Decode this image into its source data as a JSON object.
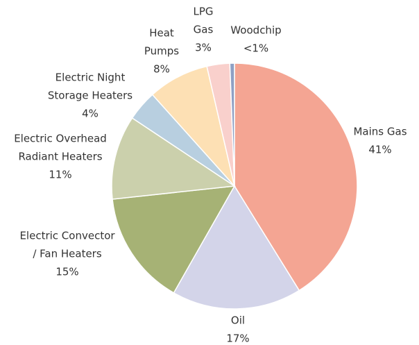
{
  "chart_data": {
    "type": "pie",
    "categories": [
      [
        "Mains Gas"
      ],
      [
        "Oil"
      ],
      [
        "Electric Convector",
        "/ Fan Heaters"
      ],
      [
        "Electric Overhead",
        "Radiant Heaters"
      ],
      [
        "Electric Night",
        "Storage Heaters"
      ],
      [
        "Heat",
        "Pumps"
      ],
      [
        "LPG",
        "Gas"
      ],
      [
        "Woodchip"
      ]
    ],
    "values": [
      41,
      17,
      15,
      11,
      4,
      8,
      3,
      0.6
    ],
    "value_labels": [
      "41%",
      "17%",
      "15%",
      "11%",
      "4%",
      "8%",
      "3%",
      "<1%"
    ],
    "colors": [
      "#f4a593",
      "#d3d4e9",
      "#a6b275",
      "#cbd0ac",
      "#b8cfe0",
      "#fde0b4",
      "#f9d0cc",
      "#8fa0c4"
    ]
  }
}
